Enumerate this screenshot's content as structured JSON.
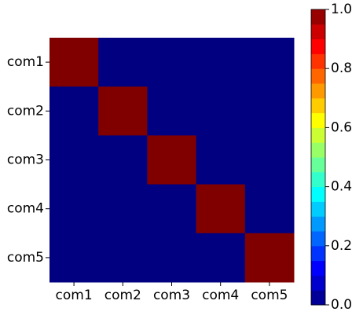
{
  "chart_data": {
    "type": "heatmap",
    "x_categories": [
      "com1",
      "com2",
      "com3",
      "com4",
      "com5"
    ],
    "y_categories": [
      "com1",
      "com2",
      "com3",
      "com4",
      "com5"
    ],
    "values": [
      [
        1,
        0,
        0,
        0,
        0
      ],
      [
        0,
        1,
        0,
        0,
        0
      ],
      [
        0,
        0,
        1,
        0,
        0
      ],
      [
        0,
        0,
        0,
        1,
        0
      ],
      [
        0,
        0,
        0,
        0,
        1
      ]
    ],
    "colormap": "jet",
    "clim": [
      0,
      1
    ],
    "cticks": [
      {
        "value": 0,
        "label": "0.0"
      },
      {
        "value": 0.2,
        "label": "0.2"
      },
      {
        "value": 0.4,
        "label": "0.4"
      },
      {
        "value": 0.6,
        "label": "0.6"
      },
      {
        "value": 0.8,
        "label": "0.8"
      },
      {
        "value": 1,
        "label": "1.0"
      }
    ]
  }
}
